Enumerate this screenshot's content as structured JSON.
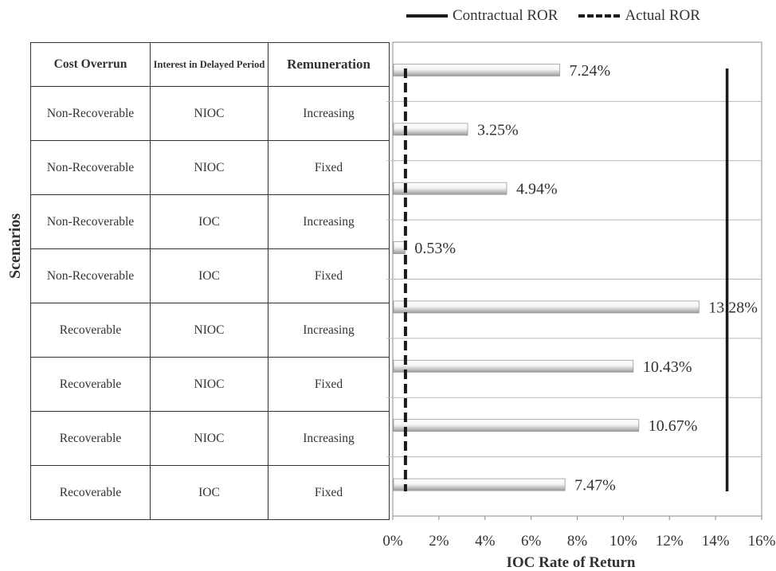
{
  "legend": {
    "contractual": "Contractual ROR",
    "actual": "Actual ROR"
  },
  "y_title": "Scenarios",
  "table": {
    "headers": [
      "Cost Overrun",
      "Interest in Delayed Period",
      "Remuneration"
    ],
    "rows": [
      [
        "Non-Recoverable",
        "NIOC",
        "Increasing"
      ],
      [
        "Non-Recoverable",
        "NIOC",
        "Fixed"
      ],
      [
        "Non-Recoverable",
        "IOC",
        "Increasing"
      ],
      [
        "Non-Recoverable",
        "IOC",
        "Fixed"
      ],
      [
        "Recoverable",
        "NIOC",
        "Increasing"
      ],
      [
        "Recoverable",
        "NIOC",
        "Fixed"
      ],
      [
        "Recoverable",
        "NIOC",
        "Increasing"
      ],
      [
        "Recoverable",
        "IOC",
        "Fixed"
      ]
    ]
  },
  "chart_data": {
    "type": "bar",
    "orientation": "horizontal",
    "xlabel": "IOC Rate of Return",
    "xlim": [
      0,
      16
    ],
    "xticks": [
      "0%",
      "2%",
      "4%",
      "6%",
      "8%",
      "10%",
      "12%",
      "14%",
      "16%"
    ],
    "values": [
      7.24,
      3.25,
      4.94,
      0.53,
      13.28,
      10.43,
      10.67,
      7.47
    ],
    "labels": [
      "7.24%",
      "3.25%",
      "4.94%",
      "0.53%",
      "13.28%",
      "10.43%",
      "10.67%",
      "7.47%"
    ],
    "reference_lines": [
      {
        "name": "Contractual ROR",
        "value": 14.5,
        "style": "solid"
      },
      {
        "name": "Actual ROR",
        "value": 0.55,
        "style": "dashed"
      }
    ],
    "grid": true,
    "legend_position": "top"
  }
}
